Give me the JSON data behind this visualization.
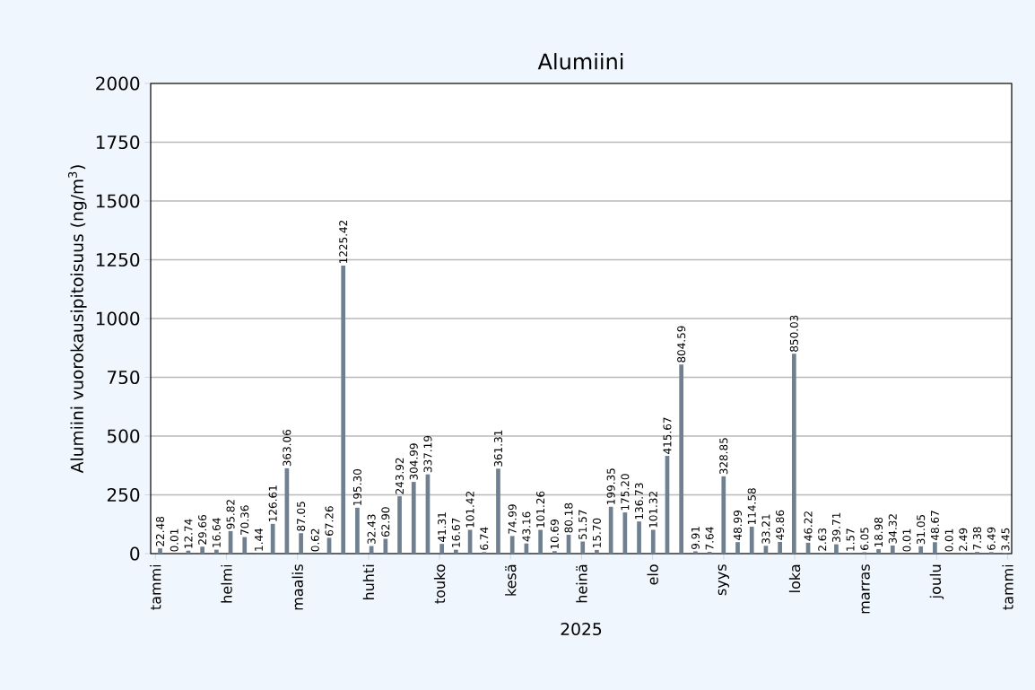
{
  "chart_data": {
    "type": "bar",
    "title": "Alumiini",
    "xlabel": "2025",
    "ylabel": "Alumiini vuorokausipitoisuus (ng/m$^{3}$)",
    "categories": [
      null,
      null,
      null,
      null,
      null,
      null,
      null,
      null,
      null,
      null,
      null,
      null,
      null,
      null,
      null,
      null,
      null,
      null,
      null,
      null,
      null,
      null,
      null,
      null,
      null,
      null,
      null,
      null,
      null,
      null,
      null,
      null,
      null,
      null,
      null,
      null,
      null,
      null,
      null,
      null,
      null,
      null,
      null,
      null,
      null,
      null,
      null,
      null,
      null,
      null,
      null,
      null,
      null,
      null,
      null,
      null,
      null,
      null,
      null,
      null,
      null
    ],
    "values": [
      22.48,
      0.01,
      12.74,
      29.66,
      16.64,
      95.82,
      70.36,
      1.44,
      126.61,
      363.06,
      87.05,
      0.62,
      67.26,
      1225.42,
      195.3,
      32.43,
      62.9,
      243.92,
      304.99,
      337.19,
      41.31,
      16.67,
      101.42,
      6.74,
      361.31,
      74.99,
      43.16,
      101.26,
      10.69,
      80.18,
      51.57,
      15.7,
      199.35,
      175.2,
      136.73,
      101.32,
      415.67,
      804.59,
      9.91,
      7.64,
      328.85,
      48.99,
      114.58,
      33.21,
      49.86,
      850.03,
      46.22,
      2.63,
      39.71,
      1.57,
      6.05,
      18.98,
      34.32,
      0.01,
      31.05,
      48.67,
      0.01,
      2.49,
      7.38,
      6.49,
      3.45
    ],
    "value_labels": [
      "22.48",
      "0.01",
      "12.74",
      "29.66",
      "16.64",
      "95.82",
      "70.36",
      "1.44",
      "126.61",
      "363.06",
      "87.05",
      "0.62",
      "67.26",
      "1225.42",
      "195.30",
      "32.43",
      "62.90",
      "243.92",
      "304.99",
      "337.19",
      "41.31",
      "16.67",
      "101.42",
      "6.74",
      "361.31",
      "74.99",
      "43.16",
      "101.26",
      "10.69",
      "80.18",
      "51.57",
      "15.70",
      "199.35",
      "175.20",
      "136.73",
      "101.32",
      "415.67",
      "804.59",
      "9.91",
      "7.64",
      "328.85",
      "48.99",
      "114.58",
      "33.21",
      "49.86",
      "850.03",
      "46.22",
      "2.63",
      "39.71",
      "1.57",
      "6.05",
      "18.98",
      "34.32",
      "0.01",
      "31.05",
      "48.67",
      "0.01",
      "2.49",
      "7.38",
      "6.49",
      "3.45"
    ],
    "color": "#708090",
    "annotations": [
      "tammi",
      "helmi",
      "maalis",
      "huhti",
      "touko",
      "kesä",
      "heinä",
      "elo",
      "syys",
      "loka",
      "marras",
      "joulu",
      "tammi"
    ],
    "ylim": [
      0,
      2000
    ],
    "yticks": [
      0,
      250,
      500,
      750,
      1000,
      1250,
      1500,
      1750,
      2000
    ],
    "grid": "y"
  }
}
